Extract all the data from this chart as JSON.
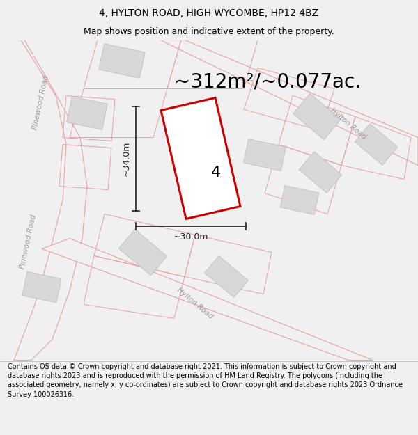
{
  "title": "4, HYLTON ROAD, HIGH WYCOMBE, HP12 4BZ",
  "subtitle": "Map shows position and indicative extent of the property.",
  "area_text": "~312m²/~0.077ac.",
  "dim_width": "~30.0m",
  "dim_height": "~34.0m",
  "property_number": "4",
  "footer": "Contains OS data © Crown copyright and database right 2021. This information is subject to Crown copyright and database rights 2023 and is reproduced with the permission of HM Land Registry. The polygons (including the associated geometry, namely x, y co-ordinates) are subject to Crown copyright and database rights 2023 Ordnance Survey 100026316.",
  "bg_color": "#f0f0f0",
  "map_bg": "#f8f8f8",
  "road_stroke": "#e8a0a0",
  "road_fill": "#f0f0f0",
  "building_fc": "#d8d8d8",
  "building_ec": "#c0c0c0",
  "property_ec": "#cc0000",
  "property_fc": "#ffffff",
  "dim_color": "#222222",
  "road_label_color": "#999999",
  "title_fontsize": 10,
  "subtitle_fontsize": 9,
  "area_fontsize": 20,
  "footer_fontsize": 7,
  "number_fontsize": 16
}
